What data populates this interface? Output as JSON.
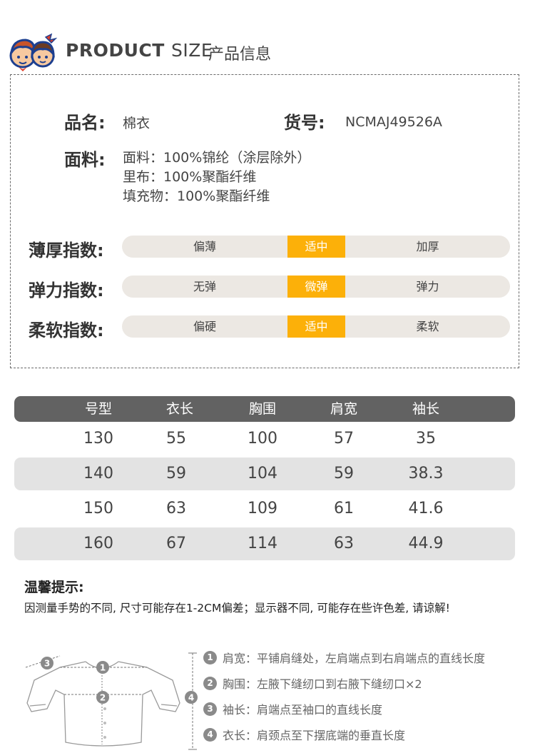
{
  "header": {
    "title_en_bold": "PRODUCT",
    "title_en_light": "SIZE",
    "title_cn": "产品信息"
  },
  "info": {
    "name_label": "品名:",
    "name_value": "棉衣",
    "sku_label": "货号:",
    "sku_value": "NCMAJ49526A",
    "fabric_label": "面料:",
    "fabric_lines": [
      "面料：100%锦纶（涂层除外）",
      "里布：100%聚酯纤维",
      "填充物：100%聚酯纤维"
    ]
  },
  "indices": [
    {
      "label": "薄厚指数:",
      "options": [
        "偏薄",
        "适中",
        "加厚"
      ],
      "selected": "适中"
    },
    {
      "label": "弹力指数:",
      "options": [
        "无弹",
        "微弹",
        "弹力"
      ],
      "selected": "微弹"
    },
    {
      "label": "柔软指数:",
      "options": [
        "偏硬",
        "适中",
        "柔软"
      ],
      "selected": "适中"
    }
  ],
  "size_table": {
    "headers": [
      "号型",
      "衣长",
      "胸围",
      "肩宽",
      "袖长"
    ],
    "rows": [
      [
        "130",
        "55",
        "100",
        "57",
        "35"
      ],
      [
        "140",
        "59",
        "104",
        "59",
        "38.3"
      ],
      [
        "150",
        "63",
        "109",
        "61",
        "41.6"
      ],
      [
        "160",
        "67",
        "114",
        "63",
        "44.9"
      ]
    ]
  },
  "notes": {
    "title": "温馨提示:",
    "text": "因测量手势的不同, 尺寸可能存在1-2CM偏差；显示器不同, 可能存在些许色差, 请谅解!"
  },
  "measurements": [
    {
      "num": "1",
      "label": "肩宽：",
      "desc": "平铺肩缝处，左肩端点到右肩端点的直线长度"
    },
    {
      "num": "2",
      "label": "胸围：",
      "desc": "左腋下缝纫口到右腋下缝纫口×2"
    },
    {
      "num": "3",
      "label": "袖长：",
      "desc": "肩端点至袖口的直线长度"
    },
    {
      "num": "4",
      "label": "衣长：",
      "desc": "肩颈点至下摆底端的垂直长度"
    }
  ],
  "colors": {
    "accent": "#fcb009",
    "pill_bg": "#ece8e3",
    "table_header": "#626262",
    "row_shade": "#e3e3e3"
  }
}
